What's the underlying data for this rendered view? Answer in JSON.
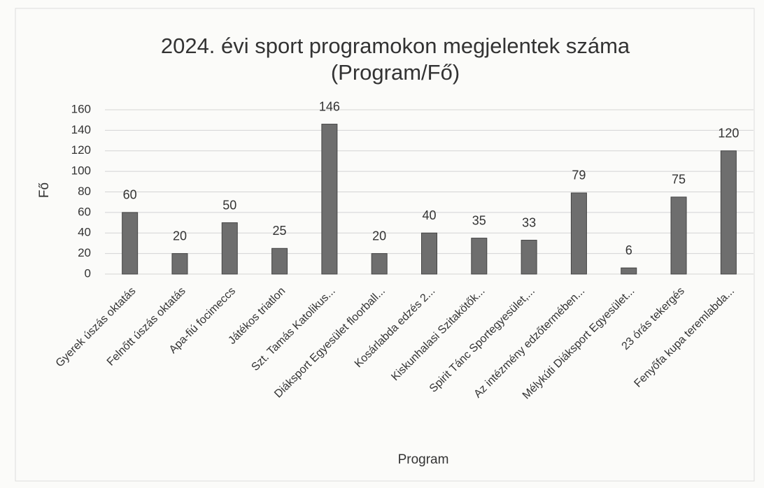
{
  "chart_data": {
    "type": "bar",
    "title": "2024. évi sport programokon megjelentek száma",
    "subtitle": "(Program/Fő)",
    "x_label": "Program",
    "y_label": "Fő",
    "categories": [
      "Gyerek úszás oktatás",
      "Felnőtt úszás oktatás",
      "Apa-fiú focimeccs",
      "Játékos triatlon",
      "Szt. Tamás Katolikus...",
      "Diáksport Egyesület floorball...",
      "Kosárlabda edzés 2...",
      "Kiskunhalasi Szitakötők...",
      "Spirit Tánc Sportegyesület,...",
      "Az intézmény edzőtermében...",
      "Mélykúti Diáksport Egyesület...",
      "23 órás tekergés",
      "Fenyőfa kupa teremlabda..."
    ],
    "values": [
      60,
      20,
      50,
      25,
      146,
      20,
      40,
      35,
      33,
      79,
      6,
      75,
      120
    ],
    "color": "#6e6e6e",
    "ylim": [
      0,
      160
    ],
    "yticks": [
      0,
      20,
      40,
      60,
      80,
      100,
      120,
      140,
      160
    ],
    "grid": true
  }
}
